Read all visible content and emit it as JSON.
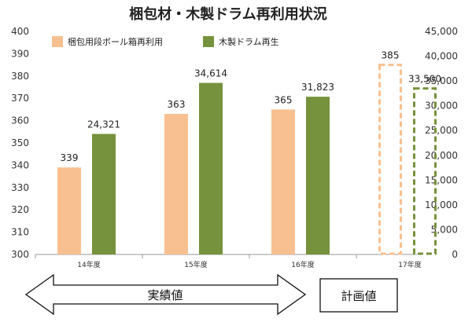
{
  "chart_data": {
    "type": "bar",
    "title": "梱包材・木製ドラム再利用状況",
    "categories": [
      "14年度",
      "15年度",
      "16年度",
      "17年度"
    ],
    "series": [
      {
        "name": "梱包用段ボール箱再利用",
        "axis": "left",
        "values": [
          339,
          363,
          365,
          385
        ],
        "data_labels": [
          "339",
          "363",
          "365",
          "385"
        ],
        "color": "#F8C090",
        "planned_style": "dashed-outline"
      },
      {
        "name": "木製ドラム再生",
        "axis": "right",
        "values": [
          24321,
          34614,
          31823,
          33500
        ],
        "data_labels": [
          "24,321",
          "34,614",
          "31,823",
          "33,500"
        ],
        "color": "#76923C",
        "planned_style": "dashed-outline"
      }
    ],
    "y_left": {
      "ylim": [
        300,
        400
      ],
      "ticks": [
        "300",
        "310",
        "320",
        "330",
        "340",
        "350",
        "360",
        "370",
        "380",
        "390",
        "400"
      ]
    },
    "y_right": {
      "ylim": [
        0,
        45000
      ],
      "ticks": [
        "0",
        "5,000",
        "10,000",
        "15,000",
        "20,000",
        "25,000",
        "30,000",
        "35,000",
        "40,000",
        "45,000"
      ]
    },
    "grid": false,
    "legend": "top-left",
    "annotations": {
      "actual_label": "実績値",
      "plan_label": "計画値"
    }
  }
}
